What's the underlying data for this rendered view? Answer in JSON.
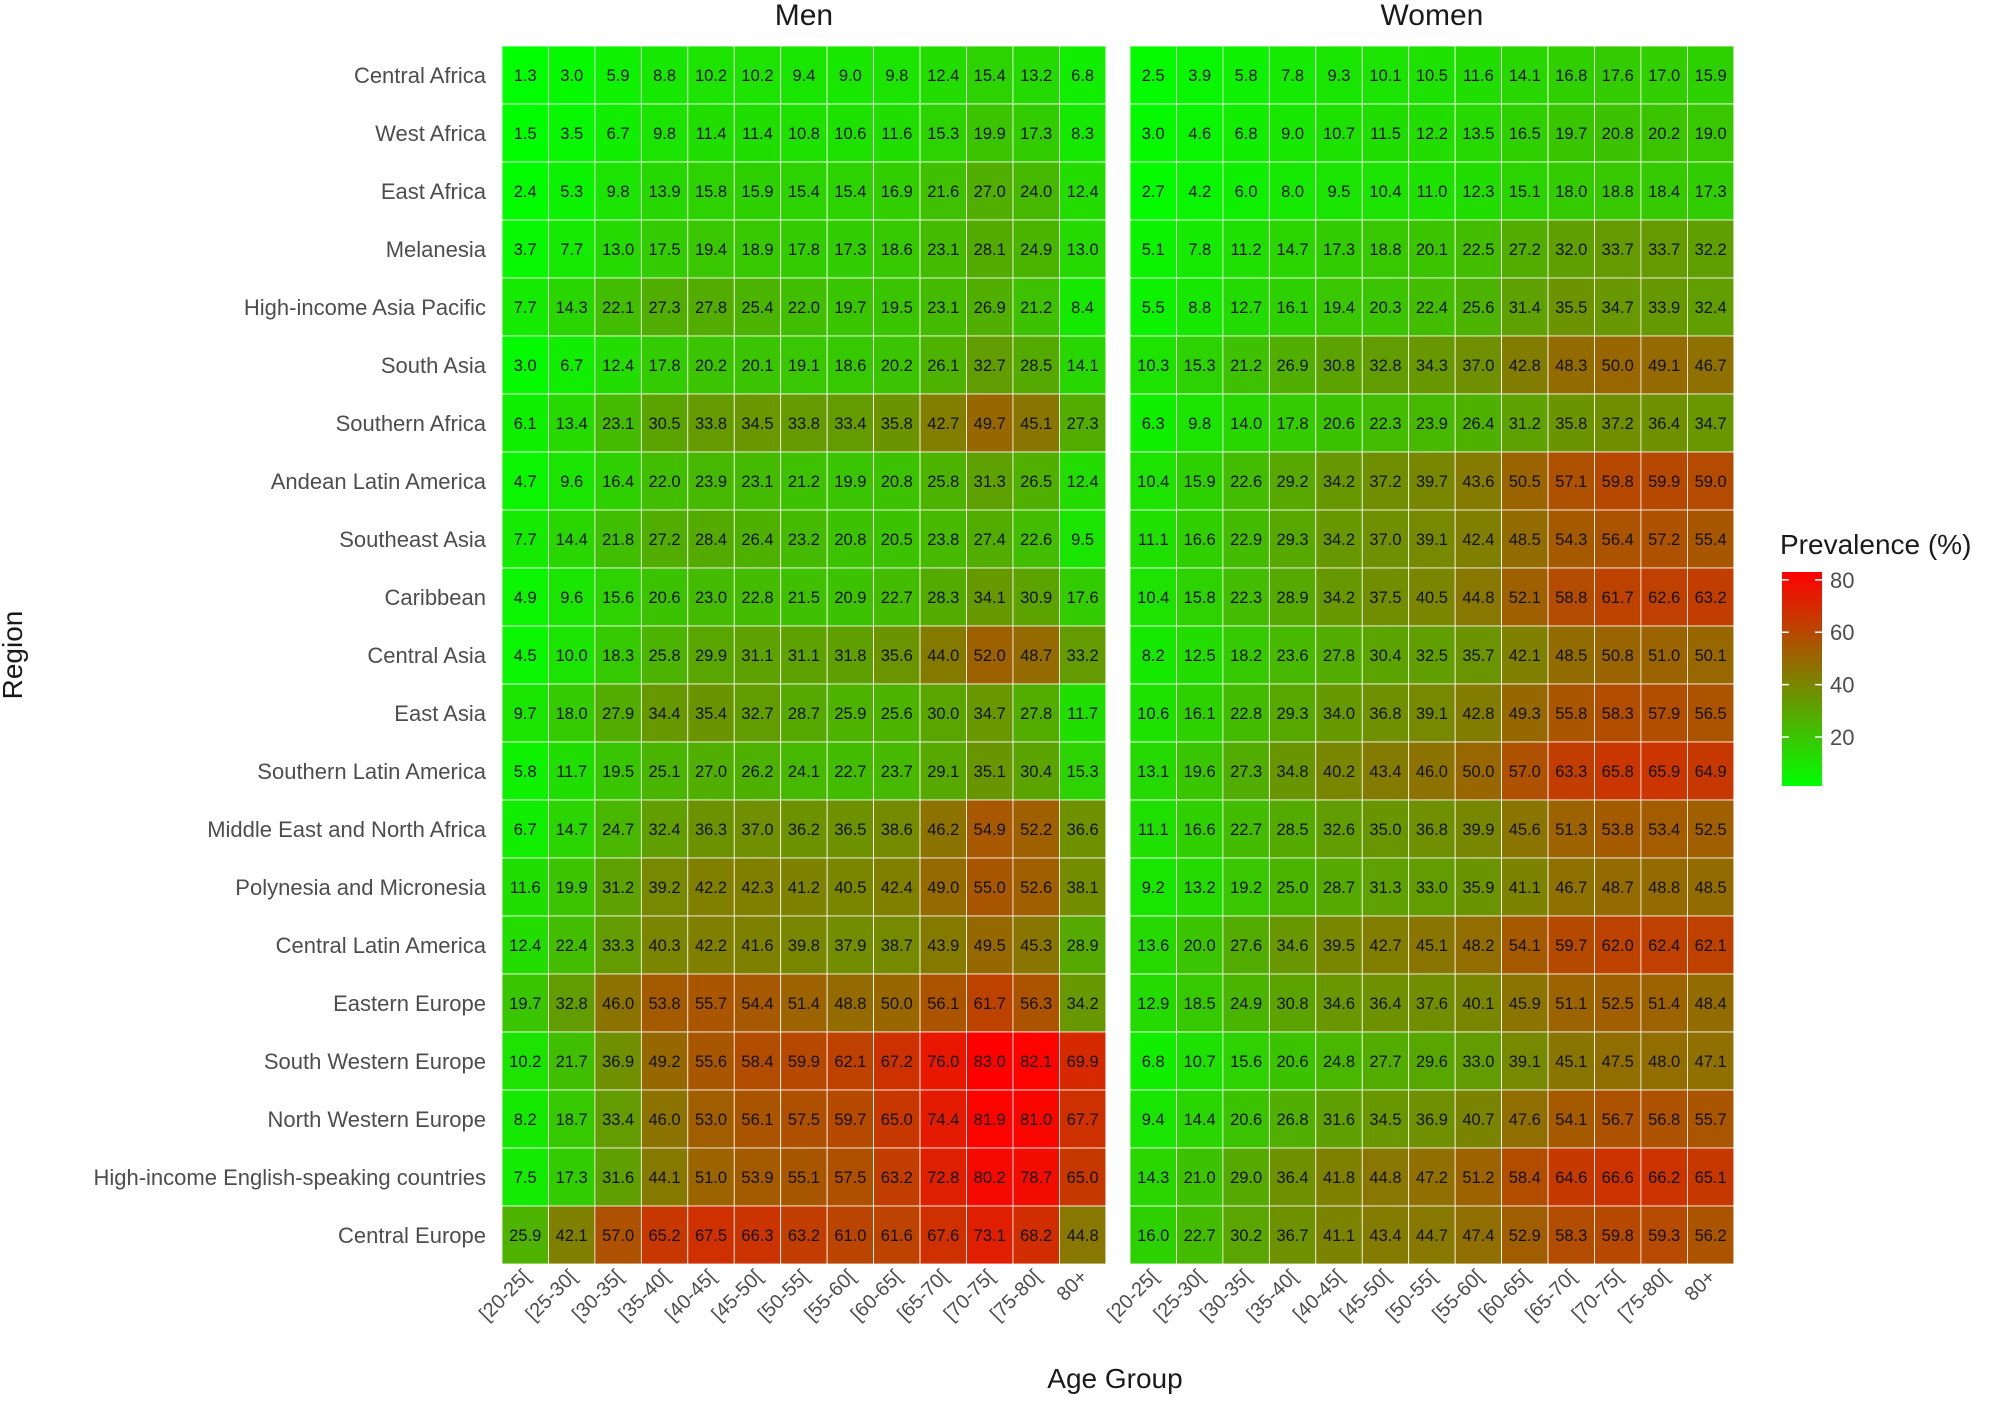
{
  "chart_data": {
    "type": "heatmap",
    "facets": [
      "Men",
      "Women"
    ],
    "xlabel": "Age Group",
    "ylabel": "Region",
    "x_categories": [
      "[20-25[",
      "[25-30[",
      "[30-35[",
      "[35-40[",
      "[40-45[",
      "[45-50[",
      "[50-55[",
      "[55-60[",
      "[60-65[",
      "[65-70[",
      "[70-75[",
      "[75-80[",
      "80+"
    ],
    "y_categories": [
      "Central Africa",
      "West Africa",
      "East Africa",
      "Melanesia",
      "High-income Asia Pacific",
      "South Asia",
      "Southern Africa",
      "Andean Latin America",
      "Southeast Asia",
      "Caribbean",
      "Central Asia",
      "East Asia",
      "Southern Latin America",
      "Middle East and North Africa",
      "Polynesia and Micronesia",
      "Central Latin America",
      "Eastern Europe",
      "South Western Europe",
      "North Western Europe",
      "High-income English-speaking countries",
      "Central Europe"
    ],
    "values": {
      "Men": [
        [
          1.3,
          3.0,
          5.9,
          8.8,
          10.2,
          10.2,
          9.4,
          9.0,
          9.8,
          12.4,
          15.4,
          13.2,
          6.8
        ],
        [
          1.5,
          3.5,
          6.7,
          9.8,
          11.4,
          11.4,
          10.8,
          10.6,
          11.6,
          15.3,
          19.9,
          17.3,
          8.3
        ],
        [
          2.4,
          5.3,
          9.8,
          13.9,
          15.8,
          15.9,
          15.4,
          15.4,
          16.9,
          21.6,
          27.0,
          24.0,
          12.4
        ],
        [
          3.7,
          7.7,
          13.0,
          17.5,
          19.4,
          18.9,
          17.8,
          17.3,
          18.6,
          23.1,
          28.1,
          24.9,
          13.0
        ],
        [
          7.7,
          14.3,
          22.1,
          27.3,
          27.8,
          25.4,
          22.0,
          19.7,
          19.5,
          23.1,
          26.9,
          21.2,
          8.4
        ],
        [
          3.0,
          6.7,
          12.4,
          17.8,
          20.2,
          20.1,
          19.1,
          18.6,
          20.2,
          26.1,
          32.7,
          28.5,
          14.1
        ],
        [
          6.1,
          13.4,
          23.1,
          30.5,
          33.8,
          34.5,
          33.8,
          33.4,
          35.8,
          42.7,
          49.7,
          45.1,
          27.3
        ],
        [
          4.7,
          9.6,
          16.4,
          22.0,
          23.9,
          23.1,
          21.2,
          19.9,
          20.8,
          25.8,
          31.3,
          26.5,
          12.4
        ],
        [
          7.7,
          14.4,
          21.8,
          27.2,
          28.4,
          26.4,
          23.2,
          20.8,
          20.5,
          23.8,
          27.4,
          22.6,
          9.5
        ],
        [
          4.9,
          9.6,
          15.6,
          20.6,
          23.0,
          22.8,
          21.5,
          20.9,
          22.7,
          28.3,
          34.1,
          30.9,
          17.6
        ],
        [
          4.5,
          10.0,
          18.3,
          25.8,
          29.9,
          31.1,
          31.1,
          31.8,
          35.6,
          44.0,
          52.0,
          48.7,
          33.2
        ],
        [
          9.7,
          18.0,
          27.9,
          34.4,
          35.4,
          32.7,
          28.7,
          25.9,
          25.6,
          30.0,
          34.7,
          27.8,
          11.7
        ],
        [
          5.8,
          11.7,
          19.5,
          25.1,
          27.0,
          26.2,
          24.1,
          22.7,
          23.7,
          29.1,
          35.1,
          30.4,
          15.3
        ],
        [
          6.7,
          14.7,
          24.7,
          32.4,
          36.3,
          37.0,
          36.2,
          36.5,
          38.6,
          46.2,
          54.9,
          52.2,
          36.6
        ],
        [
          11.6,
          19.9,
          31.2,
          39.2,
          42.2,
          42.3,
          41.2,
          40.5,
          42.4,
          49.0,
          55.0,
          52.6,
          38.1
        ],
        [
          12.4,
          22.4,
          33.3,
          40.3,
          42.2,
          41.6,
          39.8,
          37.9,
          38.7,
          43.9,
          49.5,
          45.3,
          28.9
        ],
        [
          19.7,
          32.8,
          46.0,
          53.8,
          55.7,
          54.4,
          51.4,
          48.8,
          50.0,
          56.1,
          61.7,
          56.3,
          34.2
        ],
        [
          10.2,
          21.7,
          36.9,
          49.2,
          55.6,
          58.4,
          59.9,
          62.1,
          67.2,
          76.0,
          83.0,
          82.1,
          69.9
        ],
        [
          8.2,
          18.7,
          33.4,
          46.0,
          53.0,
          56.1,
          57.5,
          59.7,
          65.0,
          74.4,
          81.9,
          81.0,
          67.7
        ],
        [
          7.5,
          17.3,
          31.6,
          44.1,
          51.0,
          53.9,
          55.1,
          57.5,
          63.2,
          72.8,
          80.2,
          78.7,
          65.0
        ],
        [
          25.9,
          42.1,
          57.0,
          65.2,
          67.5,
          66.3,
          63.2,
          61.0,
          61.6,
          67.6,
          73.1,
          68.2,
          44.8
        ]
      ],
      "Women": [
        [
          2.5,
          3.9,
          5.8,
          7.8,
          9.3,
          10.1,
          10.5,
          11.6,
          14.1,
          16.8,
          17.6,
          17.0,
          15.9
        ],
        [
          3.0,
          4.6,
          6.8,
          9.0,
          10.7,
          11.5,
          12.2,
          13.5,
          16.5,
          19.7,
          20.8,
          20.2,
          19.0
        ],
        [
          2.7,
          4.2,
          6.0,
          8.0,
          9.5,
          10.4,
          11.0,
          12.3,
          15.1,
          18.0,
          18.8,
          18.4,
          17.3
        ],
        [
          5.1,
          7.8,
          11.2,
          14.7,
          17.3,
          18.8,
          20.1,
          22.5,
          27.2,
          32.0,
          33.7,
          33.7,
          32.2
        ],
        [
          5.5,
          8.8,
          12.7,
          16.1,
          19.4,
          20.3,
          22.4,
          25.6,
          31.4,
          35.5,
          34.7,
          33.9,
          32.4
        ],
        [
          10.3,
          15.3,
          21.2,
          26.9,
          30.8,
          32.8,
          34.3,
          37.0,
          42.8,
          48.3,
          50.0,
          49.1,
          46.7
        ],
        [
          6.3,
          9.8,
          14.0,
          17.8,
          20.6,
          22.3,
          23.9,
          26.4,
          31.2,
          35.8,
          37.2,
          36.4,
          34.7
        ],
        [
          10.4,
          15.9,
          22.6,
          29.2,
          34.2,
          37.2,
          39.7,
          43.6,
          50.5,
          57.1,
          59.8,
          59.9,
          59.0
        ],
        [
          11.1,
          16.6,
          22.9,
          29.3,
          34.2,
          37.0,
          39.1,
          42.4,
          48.5,
          54.3,
          56.4,
          57.2,
          55.4
        ],
        [
          10.4,
          15.8,
          22.3,
          28.9,
          34.2,
          37.5,
          40.5,
          44.8,
          52.1,
          58.8,
          61.7,
          62.6,
          63.2
        ],
        [
          8.2,
          12.5,
          18.2,
          23.6,
          27.8,
          30.4,
          32.5,
          35.7,
          42.1,
          48.5,
          50.8,
          51.0,
          50.1
        ],
        [
          10.6,
          16.1,
          22.8,
          29.3,
          34.0,
          36.8,
          39.1,
          42.8,
          49.3,
          55.8,
          58.3,
          57.9,
          56.5
        ],
        [
          13.1,
          19.6,
          27.3,
          34.8,
          40.2,
          43.4,
          46.0,
          50.0,
          57.0,
          63.3,
          65.8,
          65.9,
          64.9
        ],
        [
          11.1,
          16.6,
          22.7,
          28.5,
          32.6,
          35.0,
          36.8,
          39.9,
          45.6,
          51.3,
          53.8,
          53.4,
          52.5
        ],
        [
          9.2,
          13.2,
          19.2,
          25.0,
          28.7,
          31.3,
          33.0,
          35.9,
          41.1,
          46.7,
          48.7,
          48.8,
          48.5
        ],
        [
          13.6,
          20.0,
          27.6,
          34.6,
          39.5,
          42.7,
          45.1,
          48.2,
          54.1,
          59.7,
          62.0,
          62.4,
          62.1
        ],
        [
          12.9,
          18.5,
          24.9,
          30.8,
          34.6,
          36.4,
          37.6,
          40.1,
          45.9,
          51.1,
          52.5,
          51.4,
          48.4
        ],
        [
          6.8,
          10.7,
          15.6,
          20.6,
          24.8,
          27.7,
          29.6,
          33.0,
          39.1,
          45.1,
          47.5,
          48.0,
          47.1
        ],
        [
          9.4,
          14.4,
          20.6,
          26.8,
          31.6,
          34.5,
          36.9,
          40.7,
          47.6,
          54.1,
          56.7,
          56.8,
          55.7
        ],
        [
          14.3,
          21.0,
          29.0,
          36.4,
          41.8,
          44.8,
          47.2,
          51.2,
          58.4,
          64.6,
          66.6,
          66.2,
          65.1
        ],
        [
          16.0,
          22.7,
          30.2,
          36.7,
          41.1,
          43.4,
          44.7,
          47.4,
          52.9,
          58.3,
          59.8,
          59.3,
          56.2
        ]
      ]
    },
    "legend": {
      "title": "Prevalence (%)",
      "ticks": [
        20,
        40,
        60,
        80
      ],
      "range": [
        1.3,
        83.0
      ],
      "colors": [
        "#00ff00",
        "#ff0000"
      ],
      "placement": "right"
    },
    "grid": true
  }
}
